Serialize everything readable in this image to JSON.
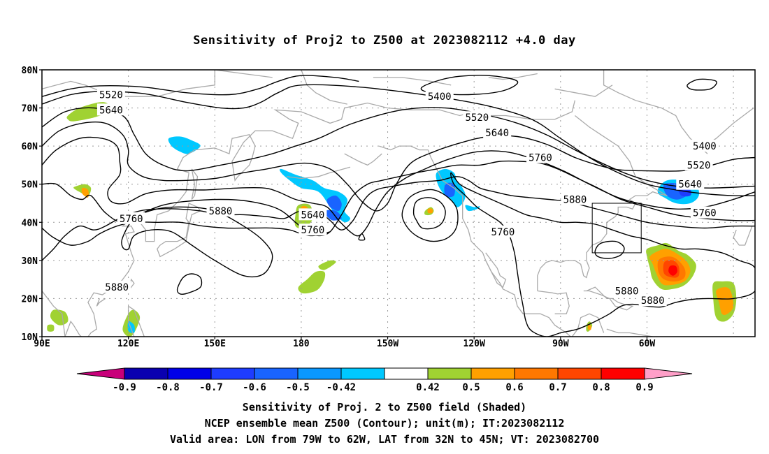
{
  "title": "Sensitivity of Proj2 to Z500 at 2023082112 +4.0 day",
  "footer": {
    "line1": "Sensitivity of Proj. 2 to Z500 field (Shaded)",
    "line2": "NCEP ensemble mean Z500 (Contour); unit(m); IT:2023082112",
    "line3": "Valid area: LON from 79W to 62W, LAT from 32N to 45N; VT: 2023082700"
  },
  "axes": {
    "lat_labels": [
      "80N",
      "70N",
      "60N",
      "50N",
      "40N",
      "30N",
      "20N",
      "10N"
    ],
    "lon_labels": [
      "90E",
      "120E",
      "150E",
      "180",
      "150W",
      "120W",
      "90W",
      "60W"
    ]
  },
  "contour_labels": [
    {
      "text": "5520",
      "lon": 114,
      "lat": 73.5
    },
    {
      "text": "5640",
      "lon": 114,
      "lat": 69.5
    },
    {
      "text": "5760",
      "lon": 121,
      "lat": 41
    },
    {
      "text": "5880",
      "lon": 152,
      "lat": 43
    },
    {
      "text": "5640",
      "lon": 184,
      "lat": 42
    },
    {
      "text": "5760",
      "lon": 184,
      "lat": 38
    },
    {
      "text": "5880",
      "lon": 116,
      "lat": 23
    },
    {
      "text": "5400",
      "lon": 228,
      "lat": 73
    },
    {
      "text": "5520",
      "lon": 241,
      "lat": 67.5
    },
    {
      "text": "5640",
      "lon": 248,
      "lat": 63.5
    },
    {
      "text": "5760",
      "lon": 263,
      "lat": 57
    },
    {
      "text": "5760",
      "lon": 250,
      "lat": 37.5
    },
    {
      "text": "5880",
      "lon": 275,
      "lat": 46
    },
    {
      "text": "5400",
      "lon": 320,
      "lat": 60
    },
    {
      "text": "5520",
      "lon": 318,
      "lat": 55
    },
    {
      "text": "5640",
      "lon": 315,
      "lat": 50
    },
    {
      "text": "5760",
      "lon": 320,
      "lat": 42.5
    },
    {
      "text": "5880",
      "lon": 293,
      "lat": 22
    },
    {
      "text": "5880",
      "lon": 302,
      "lat": 19.5
    }
  ],
  "colorbar": {
    "tick_labels": [
      "-0.9",
      "-0.8",
      "-0.7",
      "-0.6",
      "-0.5",
      "-0.42",
      "0.42",
      "0.5",
      "0.6",
      "0.7",
      "0.8",
      "0.9"
    ],
    "colors": [
      "#c8007a",
      "#0a00b0",
      "#0000e8",
      "#1e3cff",
      "#1964ff",
      "#0a98ff",
      "#00c8ff",
      "#ffffff",
      "#a0d232",
      "#ffa000",
      "#ff7800",
      "#ff4600",
      "#ff0000",
      "#ff9fc8"
    ]
  },
  "valid_area": {
    "lon_min": 281,
    "lon_max": 298,
    "lat_min": 32,
    "lat_max": 45
  }
}
